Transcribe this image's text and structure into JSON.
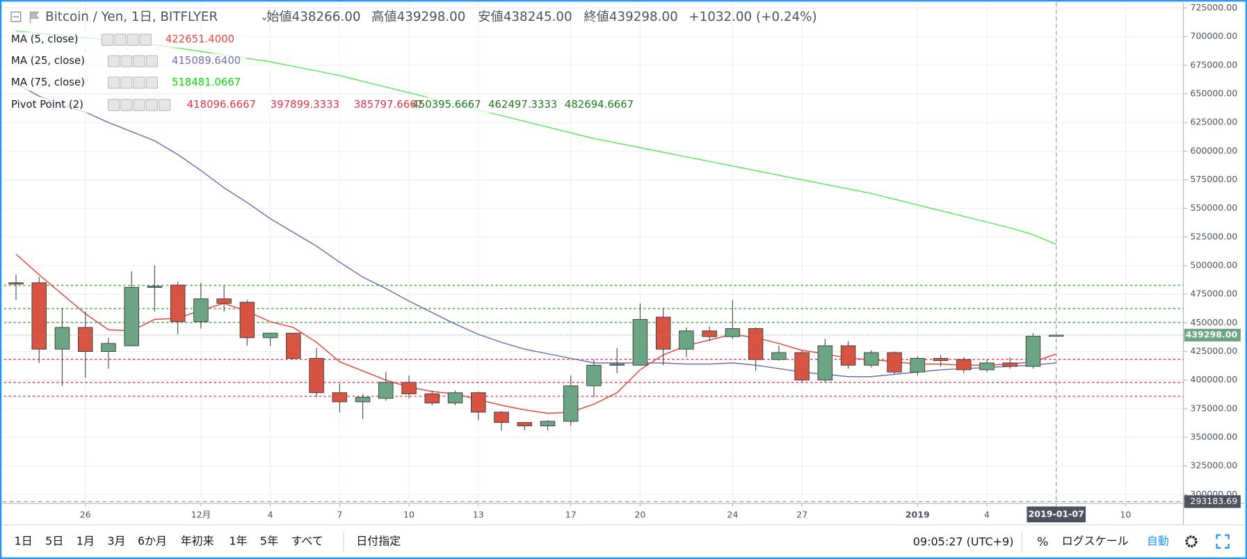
{
  "header": {
    "symbol": "Bitcoin / Yen, 1日, BITFLYER",
    "ohlc": [
      {
        "label": "始値",
        "value": "438266.00"
      },
      {
        "label": "高値",
        "value": "439298.00"
      },
      {
        "label": "安値",
        "value": "438245.00"
      },
      {
        "label": "終値",
        "value": "439298.00"
      }
    ],
    "change": "+1032.00 (+0.24%)"
  },
  "toolbar": {
    "ranges": [
      "1日",
      "5日",
      "1月",
      "3月",
      "6か月",
      "年初来",
      "1年",
      "5年",
      "すべて"
    ],
    "date_range": "日付指定",
    "time": "09:05:27 (UTC+9)",
    "percent": "%",
    "log": "ログスケール",
    "auto": "自動"
  },
  "chart_data": {
    "type": "candlestick",
    "x": [
      0,
      1,
      2,
      3,
      4,
      5,
      6,
      7,
      8,
      9,
      10,
      11,
      12,
      13,
      14,
      15,
      16,
      17,
      18,
      19,
      20,
      21,
      22,
      23,
      24,
      25,
      26,
      27,
      28,
      29,
      30,
      31,
      32,
      33,
      34,
      35,
      36,
      37,
      38,
      39,
      40,
      41,
      42,
      43,
      44,
      45
    ],
    "open": [
      485000,
      485000,
      427000,
      446000,
      425000,
      430000,
      481000,
      483000,
      451000,
      471000,
      468000,
      437000,
      441000,
      419000,
      389000,
      381000,
      384000,
      398000,
      388000,
      380000,
      389000,
      372000,
      363000,
      360000,
      364000,
      395000,
      413000,
      413000,
      455000,
      427000,
      443000,
      438000,
      445000,
      418000,
      424000,
      400000,
      430000,
      413000,
      424000,
      407000,
      419000,
      418000,
      409000,
      415000,
      412000,
      438266
    ],
    "high": [
      492000,
      490000,
      463000,
      460000,
      437000,
      495000,
      500000,
      486000,
      485000,
      483000,
      470000,
      441000,
      441000,
      428000,
      397000,
      388000,
      407000,
      404000,
      391000,
      391000,
      390000,
      373000,
      363000,
      365000,
      404000,
      418000,
      428000,
      467000,
      463000,
      446000,
      447000,
      470000,
      446000,
      430000,
      426000,
      436000,
      434000,
      426000,
      425000,
      421000,
      422000,
      420000,
      418000,
      420000,
      441000,
      439298
    ],
    "low": [
      470000,
      415000,
      395000,
      402000,
      410000,
      430000,
      460000,
      440000,
      445000,
      460000,
      430000,
      430000,
      418000,
      385000,
      372000,
      366000,
      382000,
      384000,
      378000,
      378000,
      365000,
      356000,
      356000,
      356000,
      360000,
      385000,
      406000,
      413000,
      413000,
      420000,
      434000,
      436000,
      408000,
      417000,
      398000,
      398000,
      410000,
      411000,
      405000,
      404000,
      412000,
      406000,
      407000,
      410000,
      410000,
      438245
    ],
    "close": [
      484000,
      427000,
      446000,
      425000,
      432000,
      481000,
      482000,
      451000,
      471000,
      467000,
      437000,
      441000,
      419000,
      389000,
      381000,
      385000,
      398000,
      388000,
      380000,
      389000,
      372000,
      363000,
      360000,
      364000,
      395000,
      413000,
      414000,
      453000,
      427000,
      443000,
      438000,
      445000,
      418000,
      424000,
      400000,
      430000,
      413000,
      424000,
      407000,
      419000,
      417000,
      409000,
      415000,
      412000,
      438300,
      439298
    ],
    "up_color": "#6ba583",
    "down_color": "#d75442",
    "series": [
      {
        "name": "MA (5, close)",
        "color": "#e8453c",
        "legend_value": "422651.4000",
        "values": [
          510000,
          492000,
          475000,
          458000,
          444000,
          443000,
          453000,
          454000,
          461000,
          467000,
          460000,
          451000,
          446000,
          433000,
          416000,
          408000,
          400000,
          394000,
          390000,
          388000,
          383000,
          378000,
          374000,
          371000,
          372000,
          379000,
          389000,
          409000,
          422000,
          430000,
          435000,
          440000,
          437000,
          432000,
          426000,
          423000,
          419000,
          418000,
          416000,
          414000,
          414000,
          413000,
          413000,
          414000,
          416000,
          422651.4
        ]
      },
      {
        "name": "MA (25, close)",
        "color": "#6f6fb5",
        "legend_value": "415089.6400",
        "values": [
          659000,
          648000,
          640000,
          634000,
          625000,
          617000,
          609000,
          597000,
          583000,
          568000,
          555000,
          541000,
          529000,
          517000,
          503000,
          490000,
          480000,
          469000,
          459000,
          449000,
          440000,
          433000,
          427000,
          423000,
          419000,
          415000,
          415000,
          415000,
          415000,
          414000,
          414000,
          415000,
          413000,
          410000,
          407000,
          405000,
          403000,
          403000,
          405000,
          407000,
          409000,
          410000,
          411000,
          412000,
          413000,
          415089.64
        ]
      },
      {
        "name": "MA (75, close)",
        "color": "#5ee65e",
        "legend_value": "518481.0667",
        "values": [
          705000,
          703000,
          701000,
          699000,
          697000,
          695000,
          693000,
          690000,
          687000,
          684000,
          681000,
          678000,
          674000,
          670000,
          666000,
          661000,
          656000,
          651000,
          646000,
          641000,
          636000,
          631000,
          626000,
          621000,
          616000,
          611000,
          607000,
          603000,
          599000,
          595000,
          591000,
          587000,
          583000,
          579000,
          575000,
          571000,
          567000,
          563000,
          558000,
          553000,
          548000,
          543000,
          538000,
          533000,
          527000,
          518481.0667
        ]
      }
    ],
    "pivot": {
      "name": "Pivot Point (2)",
      "levels": [
        418096.6667,
        397899.3333,
        385797.6667,
        450395.6667,
        462497.3333,
        482694.6667
      ],
      "level_labels": [
        "418096.6667",
        "397899.3333",
        "385797.6667",
        "450395.6667",
        "462497.3333",
        "482694.6667"
      ],
      "colors": [
        "#e8304a",
        "#e8304a",
        "#e8304a",
        "#3a9a3a",
        "#3a9a3a",
        "#3a9a3a"
      ]
    },
    "last_price": {
      "value": 439298,
      "label": "439298.00"
    },
    "crosshair": {
      "x": {
        "value": 45,
        "label": "2019-01-07"
      },
      "y": {
        "value": 293183.69,
        "label": "293183.69"
      }
    },
    "xlim": [
      -0.52,
      50.5
    ],
    "xticks": [
      {
        "value": 3,
        "label": "26"
      },
      {
        "value": 8,
        "label": "12月"
      },
      {
        "value": 11,
        "label": "4"
      },
      {
        "value": 14,
        "label": "7"
      },
      {
        "value": 17,
        "label": "10"
      },
      {
        "value": 20,
        "label": "13"
      },
      {
        "value": 24,
        "label": "17"
      },
      {
        "value": 27,
        "label": "20"
      },
      {
        "value": 31,
        "label": "24"
      },
      {
        "value": 34,
        "label": "27"
      },
      {
        "value": 39,
        "label": "2019"
      },
      {
        "value": 42,
        "label": "4"
      },
      {
        "value": 45,
        "label": "7"
      },
      {
        "value": 48,
        "label": "10"
      }
    ],
    "ylim": [
      292389,
      728472
    ],
    "yticks": [
      {
        "value": 725000,
        "label": "725000.00"
      },
      {
        "value": 700000,
        "label": "700000.00"
      },
      {
        "value": 675000,
        "label": "675000.00"
      },
      {
        "value": 650000,
        "label": "650000.00"
      },
      {
        "value": 625000,
        "label": "625000.00"
      },
      {
        "value": 600000,
        "label": "600000.00"
      },
      {
        "value": 575000,
        "label": "575000.00"
      },
      {
        "value": 550000,
        "label": "550000.00"
      },
      {
        "value": 525000,
        "label": "525000.00"
      },
      {
        "value": 500000,
        "label": "500000.00"
      },
      {
        "value": 475000,
        "label": "475000.00"
      },
      {
        "value": 450000,
        "label": "450000.00"
      },
      {
        "value": 425000,
        "label": "425000.00"
      },
      {
        "value": 400000,
        "label": "400000.00"
      },
      {
        "value": 375000,
        "label": "375000.00"
      },
      {
        "value": 350000,
        "label": "350000.00"
      },
      {
        "value": 325000,
        "label": "325000.00"
      },
      {
        "value": 300000,
        "label": "300000.00"
      }
    ],
    "grid": true
  }
}
